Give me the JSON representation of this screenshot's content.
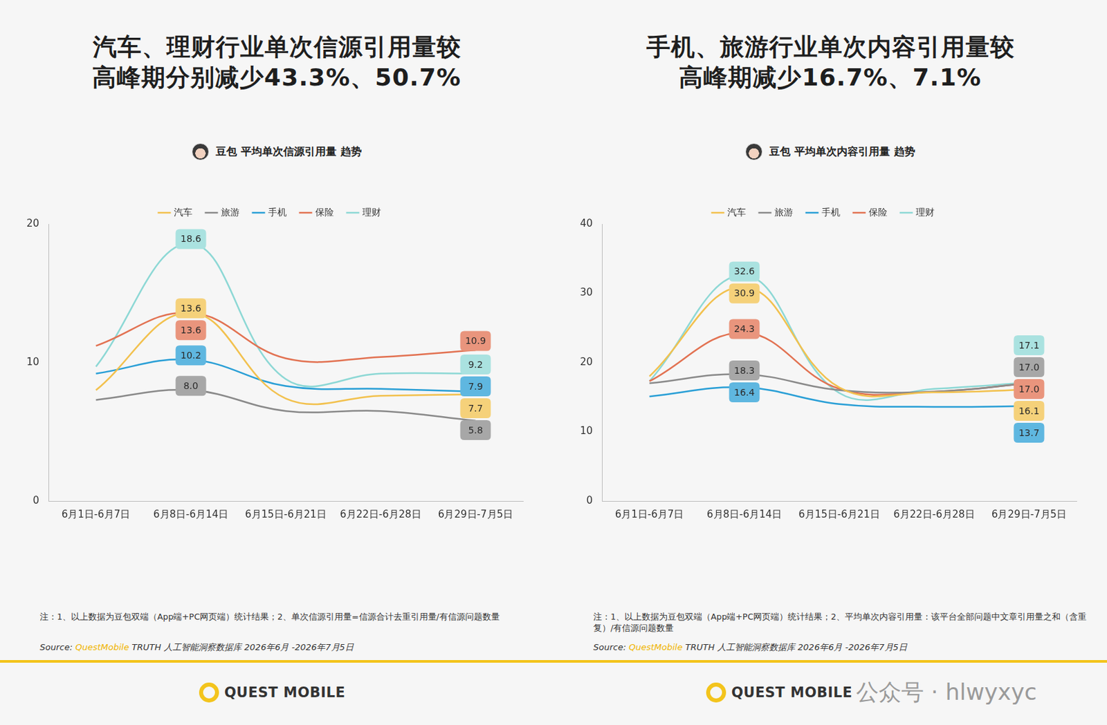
{
  "chart_data": [
    {
      "type": "line",
      "title": "汽车、理财行业单次信源引用量较高峰期分别减少43.3%、50.7%",
      "subtitle": "豆包 平均单次信源引用量 趋势",
      "categories": [
        "6月1日-6月7日",
        "6月8日-6月14日",
        "6月15日-6月21日",
        "6月22日-6月28日",
        "6月29日-7月5日"
      ],
      "series": [
        {
          "name": "汽车",
          "color": "#f2c14e",
          "values": [
            8.0,
            13.6,
            7.4,
            7.6,
            7.7
          ],
          "value_labels": [
            null,
            "13.6",
            null,
            null,
            "7.7"
          ]
        },
        {
          "name": "旅游",
          "color": "#8a8a8a",
          "values": [
            7.3,
            8.0,
            6.5,
            6.5,
            5.8
          ],
          "value_labels": [
            null,
            "8.0",
            null,
            null,
            "5.8"
          ]
        },
        {
          "name": "手机",
          "color": "#2a9fd6",
          "values": [
            9.2,
            10.2,
            8.3,
            8.1,
            7.9
          ],
          "value_labels": [
            null,
            "10.2",
            null,
            null,
            "7.9"
          ]
        },
        {
          "name": "保险",
          "color": "#e27252",
          "values": [
            11.2,
            13.6,
            10.3,
            10.4,
            10.9
          ],
          "value_labels": [
            null,
            "13.6",
            null,
            null,
            "10.9"
          ]
        },
        {
          "name": "理财",
          "color": "#8dd8d5",
          "values": [
            9.7,
            18.6,
            8.8,
            9.2,
            9.2
          ],
          "value_labels": [
            null,
            "18.6",
            null,
            null,
            "9.2"
          ]
        }
      ],
      "ylim": [
        0,
        20
      ],
      "yticks": [
        0,
        10,
        20
      ],
      "grid": false,
      "legend": "top",
      "data_labels": true,
      "note": "注：1、以上数据为豆包双端（App端+PC网页端）统计结果；2、单次信源引用量=信源合计去重引用量/有信源问题数量",
      "source": {
        "label": "Source:",
        "brand": "QuestMobile",
        "text": "TRUTH 人工智能洞察数据库 2026年6月 -2026年7月5日"
      }
    },
    {
      "type": "line",
      "title": "手机、旅游行业单次内容引用量较高峰期减少16.7%、7.1%",
      "subtitle": "豆包 平均单次内容引用量 趋势",
      "categories": [
        "6月1日-6月7日",
        "6月8日-6月14日",
        "6月15日-6月21日",
        "6月22日-6月28日",
        "6月29日-7月5日"
      ],
      "series": [
        {
          "name": "汽车",
          "color": "#f2c14e",
          "values": [
            18.0,
            30.9,
            16.4,
            15.7,
            16.1
          ],
          "value_labels": [
            null,
            "30.9",
            null,
            null,
            "16.1"
          ]
        },
        {
          "name": "旅游",
          "color": "#8a8a8a",
          "values": [
            17.0,
            18.3,
            16.0,
            15.8,
            17.0
          ],
          "value_labels": [
            null,
            "18.3",
            null,
            null,
            "17.0"
          ]
        },
        {
          "name": "手机",
          "color": "#2a9fd6",
          "values": [
            15.1,
            16.4,
            14.0,
            13.6,
            13.7
          ],
          "value_labels": [
            null,
            "16.4",
            null,
            null,
            "13.7"
          ]
        },
        {
          "name": "保险",
          "color": "#e27252",
          "values": [
            17.3,
            24.3,
            16.2,
            15.8,
            17.0
          ],
          "value_labels": [
            null,
            "24.3",
            null,
            null,
            "17.0"
          ]
        },
        {
          "name": "理财",
          "color": "#8dd8d5",
          "values": [
            17.3,
            32.6,
            15.6,
            16.2,
            17.1
          ],
          "value_labels": [
            null,
            "32.6",
            null,
            null,
            "17.1"
          ]
        }
      ],
      "ylim": [
        0,
        40
      ],
      "yticks": [
        0,
        10,
        20,
        30,
        40
      ],
      "grid": false,
      "legend": "top",
      "data_labels": true,
      "note": "注：1、以上数据为豆包双端（App端+PC网页端）统计结果；2、平均单次内容引用量：该平台全部问题中文章引用量之和（含重复）/有信源问题数量",
      "source": {
        "label": "Source:",
        "brand": "QuestMobile",
        "text": "TRUTH 人工智能洞察数据库 2026年6月 -2026年7月5日"
      }
    }
  ],
  "footer": {
    "logo": "QUEST MOBILE",
    "watermark": "公众号 · hlwyxyc"
  }
}
